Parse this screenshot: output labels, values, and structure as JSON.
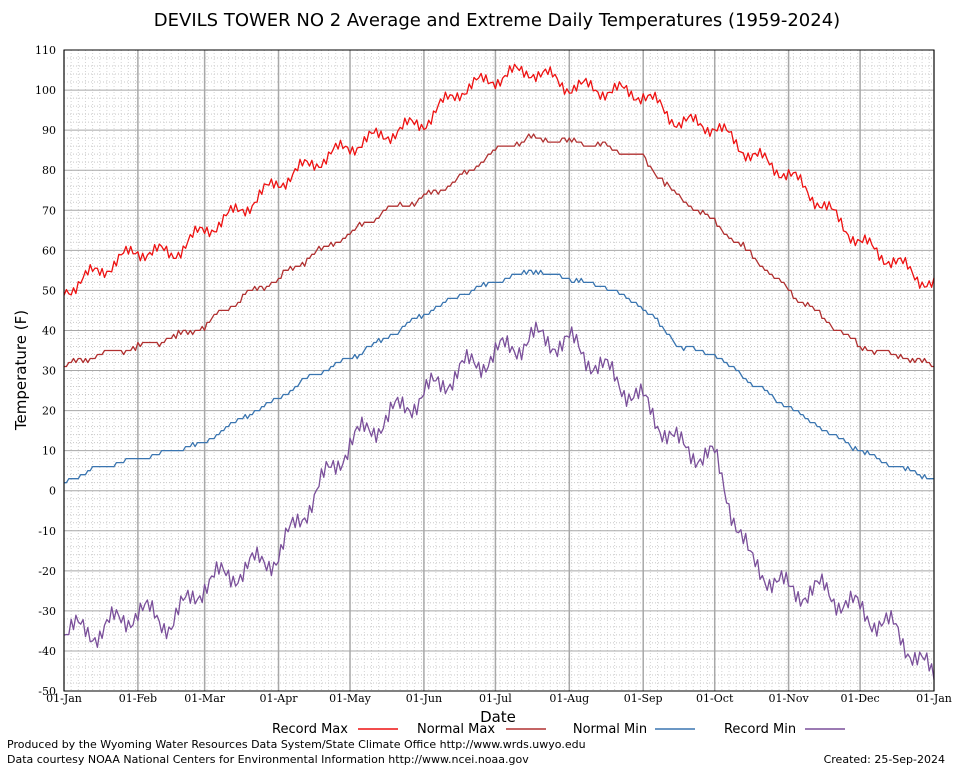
{
  "chart_data": {
    "type": "line",
    "title": "DEVILS TOWER NO 2 Average and Extreme Daily Temperatures (1959-2024)",
    "xlabel": "Date",
    "ylabel": "Temperature (F)",
    "ylim": [
      -50,
      110
    ],
    "yticks": [
      "110",
      "100",
      "90",
      "80",
      "70",
      "60",
      "50",
      "40",
      "30",
      "20",
      "10",
      "0",
      "-10",
      "-20",
      "-30",
      "-40",
      "-50"
    ],
    "xticks": [
      {
        "label": "01-Jan",
        "day": 1
      },
      {
        "label": "01-Feb",
        "day": 32
      },
      {
        "label": "01-Mar",
        "day": 60
      },
      {
        "label": "01-Apr",
        "day": 91
      },
      {
        "label": "01-May",
        "day": 121
      },
      {
        "label": "01-Jun",
        "day": 152
      },
      {
        "label": "01-Jul",
        "day": 182
      },
      {
        "label": "01-Aug",
        "day": 213
      },
      {
        "label": "01-Sep",
        "day": 244
      },
      {
        "label": "01-Oct",
        "day": 274
      },
      {
        "label": "01-Nov",
        "day": 305
      },
      {
        "label": "01-Dec",
        "day": 335
      },
      {
        "label": "01-Jan",
        "day": 366
      }
    ],
    "grid": true,
    "legend_position": "bottom",
    "x_days": [
      1,
      16,
      32,
      46,
      60,
      75,
      91,
      106,
      121,
      136,
      152,
      167,
      182,
      197,
      213,
      228,
      244,
      259,
      274,
      289,
      305,
      320,
      335,
      350,
      366
    ],
    "series": [
      {
        "name": "Record Max",
        "color": "#ee1111",
        "values": [
          50,
          55,
          60,
          59,
          65,
          70,
          77,
          82,
          86,
          89,
          92,
          100,
          103,
          105,
          101,
          100,
          99,
          92,
          91,
          84,
          79,
          71,
          62,
          57,
          51
        ]
      },
      {
        "name": "Normal Max",
        "color": "#b03030",
        "values": [
          31,
          34,
          36,
          38,
          41,
          48,
          53,
          59,
          64,
          70,
          73,
          78,
          85,
          88,
          87,
          86,
          83,
          73,
          67,
          59,
          50,
          43,
          36,
          34,
          31
        ]
      },
      {
        "name": "Normal Min",
        "color": "#3a75b0",
        "values": [
          2,
          6,
          8,
          10,
          12,
          18,
          23,
          29,
          33,
          38,
          44,
          49,
          52,
          55,
          53,
          51,
          46,
          36,
          34,
          27,
          21,
          15,
          10,
          6,
          3
        ]
      },
      {
        "name": "Record Min",
        "color": "#7a4f9a",
        "values": [
          -35,
          -35,
          -30,
          -33,
          -23,
          -20,
          -16,
          -1,
          12,
          18,
          24,
          30,
          34,
          38,
          37,
          30,
          22,
          11,
          8,
          -18,
          -25,
          -25,
          -30,
          -35,
          -47
        ]
      }
    ]
  },
  "footer": {
    "left_line1": "Produced by the Wyoming Water Resources Data System/State Climate Office http://www.wrds.uwyo.edu",
    "left_line2": "Data courtesy NOAA National Centers for Environmental Information http://www.ncei.noaa.gov",
    "created": "Created:  25-Sep-2024"
  }
}
